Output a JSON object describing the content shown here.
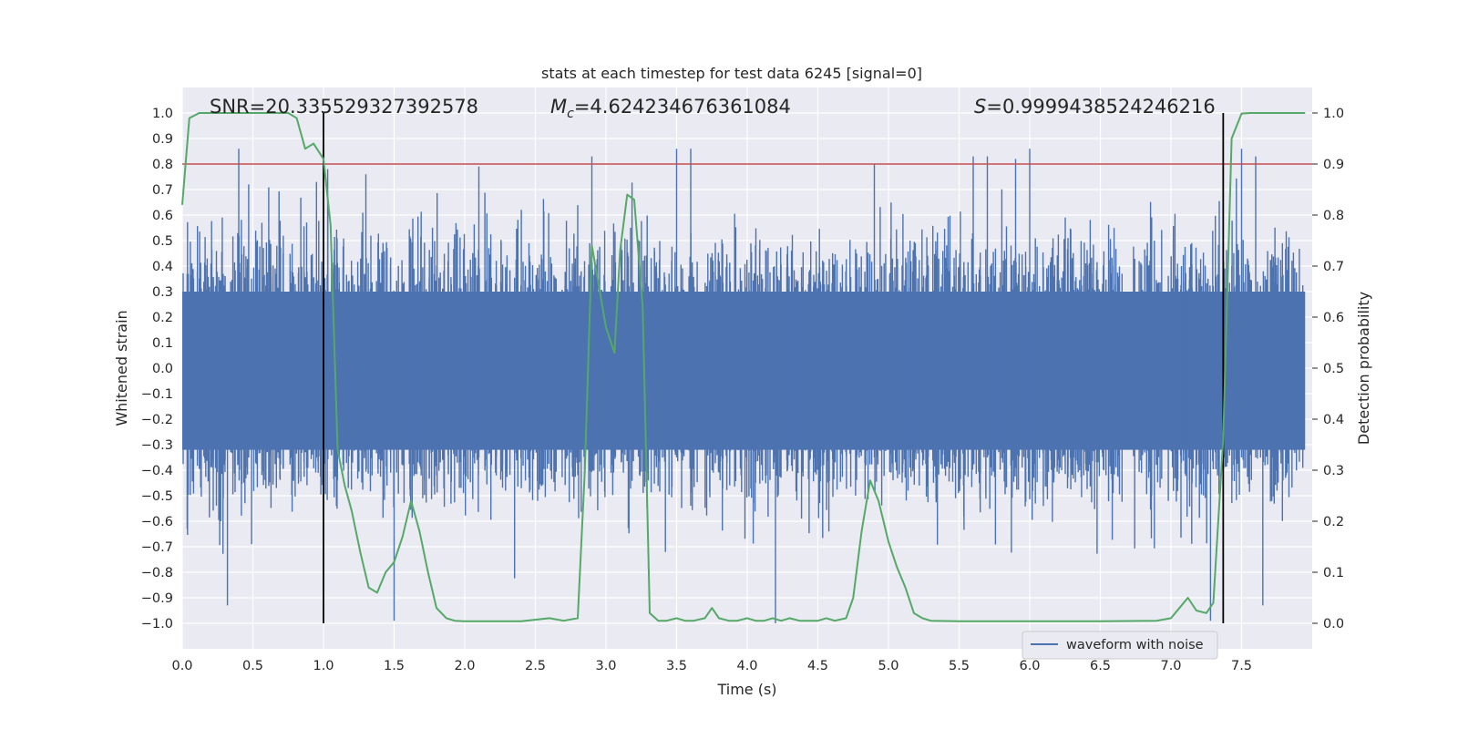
{
  "chart_data": {
    "type": "line",
    "title": "stats at each timestep for test data 6245 [signal=0]",
    "xlabel": "Time (s)",
    "ylabel": "Whitened strain",
    "y2label": "Detection probability",
    "xlim": [
      0.0,
      8.0
    ],
    "ylim": [
      -1.1,
      1.1
    ],
    "y2lim": [
      -0.05,
      1.05
    ],
    "grid": true,
    "legend_position": "lower-right",
    "x_ticks": [
      "0.0",
      "0.5",
      "1.0",
      "1.5",
      "2.0",
      "2.5",
      "3.0",
      "3.5",
      "4.0",
      "4.5",
      "5.0",
      "5.5",
      "6.0",
      "6.5",
      "7.0",
      "7.5"
    ],
    "y_ticks": [
      "1.0",
      "0.9",
      "0.8",
      "0.7",
      "0.6",
      "0.5",
      "0.4",
      "0.3",
      "0.2",
      "0.1",
      "0.0",
      "-0.1",
      "-0.2",
      "-0.3",
      "-0.4",
      "-0.5",
      "-0.6",
      "-0.7",
      "-0.8",
      "-0.9",
      "-1.0"
    ],
    "y2_ticks": [
      "1.0",
      "0.9",
      "0.8",
      "0.7",
      "0.6",
      "0.5",
      "0.4",
      "0.3",
      "0.2",
      "0.1",
      "0.0"
    ],
    "annotations": {
      "snr": "SNR=20.335529327392578",
      "mc_prefix": "M",
      "mc_sub": "c",
      "mc_value": "=4.624234676361084",
      "s_prefix": "S",
      "s_value": "=0.9999438524246216"
    },
    "threshold_value": 0.9,
    "vlines": [
      1.0,
      7.37
    ],
    "series": [
      {
        "name": "waveform with noise",
        "color": "#4c72b0",
        "note_envelope": {
          "peaks": [
            [
              0.4,
              0.86
            ],
            [
              0.47,
              0.72
            ],
            [
              0.95,
              0.73
            ],
            [
              1.03,
              0.78
            ],
            [
              1.3,
              0.76
            ],
            [
              2.1,
              0.79
            ],
            [
              2.9,
              0.83
            ],
            [
              3.5,
              0.86
            ],
            [
              3.6,
              0.86
            ],
            [
              4.9,
              0.8
            ],
            [
              5.6,
              0.83
            ],
            [
              5.7,
              0.83
            ],
            [
              5.9,
              0.82
            ],
            [
              6.0,
              0.86
            ],
            [
              7.5,
              0.86
            ],
            [
              7.6,
              0.83
            ]
          ],
          "troughs": [
            [
              0.32,
              -0.93
            ],
            [
              1.5,
              -0.99
            ],
            [
              4.2,
              -1.0
            ],
            [
              7.28,
              -0.99
            ],
            [
              7.65,
              -0.93
            ]
          ]
        }
      },
      {
        "name": "",
        "axis": "right",
        "color": "#55a868",
        "x": [
          0.0,
          0.05,
          0.12,
          0.2,
          0.3,
          0.4,
          0.5,
          0.6,
          0.7,
          0.75,
          0.81,
          0.87,
          0.93,
          1.0,
          1.05,
          1.1,
          1.15,
          1.2,
          1.26,
          1.32,
          1.38,
          1.44,
          1.5,
          1.56,
          1.62,
          1.68,
          1.74,
          1.8,
          1.87,
          1.93,
          2.0,
          2.2,
          2.4,
          2.6,
          2.7,
          2.8,
          2.85,
          2.9,
          2.95,
          3.0,
          3.06,
          3.1,
          3.15,
          3.2,
          3.26,
          3.31,
          3.37,
          3.43,
          3.5,
          3.56,
          3.62,
          3.7,
          3.75,
          3.8,
          3.87,
          3.93,
          4.0,
          4.06,
          4.12,
          4.18,
          4.24,
          4.3,
          4.37,
          4.43,
          4.5,
          4.56,
          4.62,
          4.7,
          4.75,
          4.81,
          4.87,
          4.93,
          5.0,
          5.06,
          5.12,
          5.18,
          5.24,
          5.3,
          5.5,
          6.0,
          6.5,
          6.9,
          7.0,
          7.06,
          7.12,
          7.18,
          7.25,
          7.3,
          7.37,
          7.43,
          7.5,
          7.56,
          7.62,
          7.68,
          7.75,
          7.95
        ],
        "y": [
          0.82,
          0.99,
          1.0,
          1.0,
          1.0,
          1.0,
          1.0,
          1.0,
          1.0,
          1.0,
          0.99,
          0.93,
          0.94,
          0.91,
          0.78,
          0.34,
          0.27,
          0.22,
          0.14,
          0.07,
          0.06,
          0.1,
          0.12,
          0.17,
          0.24,
          0.18,
          0.1,
          0.03,
          0.01,
          0.005,
          0.004,
          0.004,
          0.004,
          0.01,
          0.005,
          0.01,
          0.3,
          0.74,
          0.66,
          0.58,
          0.53,
          0.73,
          0.84,
          0.83,
          0.62,
          0.02,
          0.005,
          0.005,
          0.01,
          0.005,
          0.005,
          0.01,
          0.03,
          0.01,
          0.005,
          0.005,
          0.01,
          0.005,
          0.005,
          0.01,
          0.005,
          0.01,
          0.005,
          0.005,
          0.005,
          0.01,
          0.005,
          0.01,
          0.05,
          0.18,
          0.28,
          0.24,
          0.16,
          0.11,
          0.07,
          0.02,
          0.01,
          0.005,
          0.004,
          0.004,
          0.004,
          0.005,
          0.01,
          0.03,
          0.05,
          0.025,
          0.02,
          0.04,
          0.36,
          0.95,
          0.999,
          1.0,
          1.0,
          1.0,
          1.0,
          1.0
        ]
      }
    ]
  }
}
